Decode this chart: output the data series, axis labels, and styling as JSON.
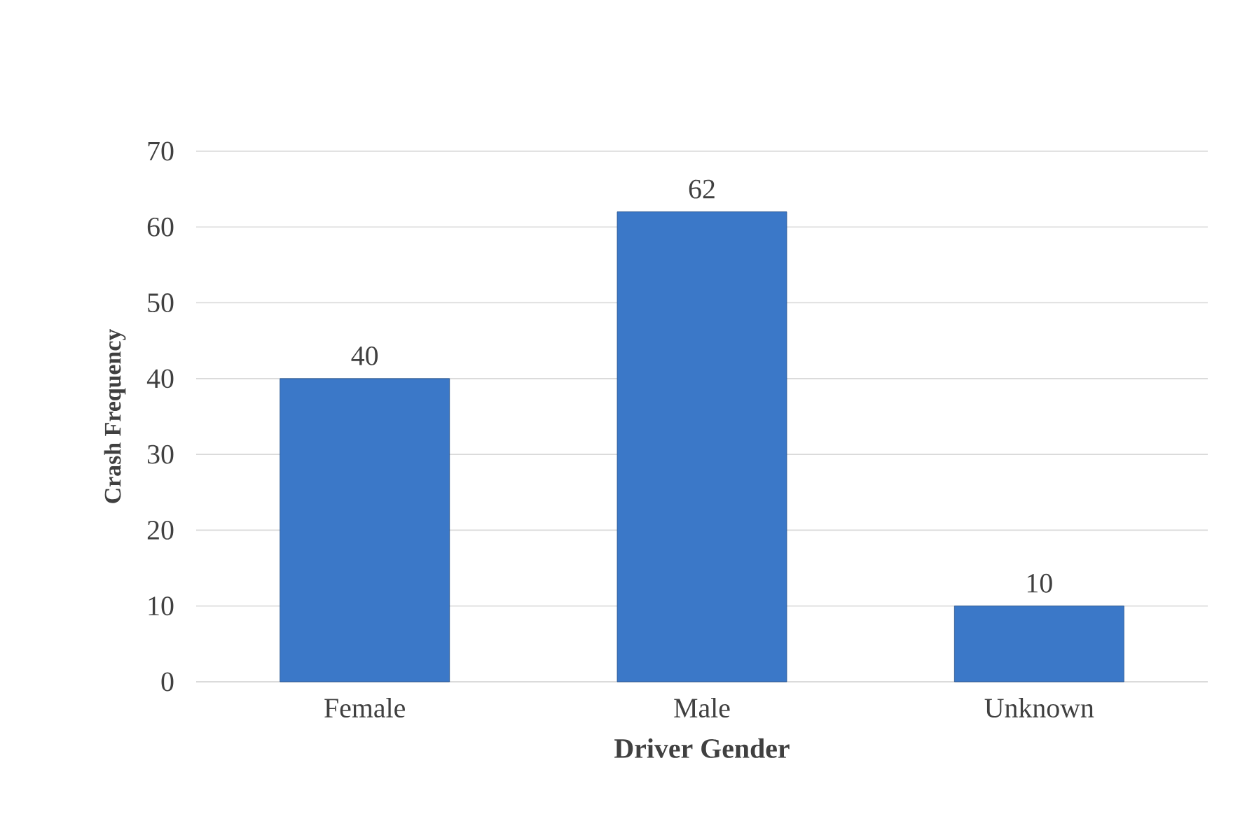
{
  "chart_data": {
    "type": "bar",
    "xlabel": "Driver Gender",
    "ylabel": "Crash Frequency",
    "categories": [
      "Female",
      "Male",
      "Unknown"
    ],
    "values": [
      40,
      62,
      10
    ],
    "color": "#3b78c8",
    "ylim": [
      0,
      70
    ],
    "yticks": [
      0,
      10,
      20,
      30,
      40,
      50,
      60,
      70
    ],
    "grid": "y",
    "data_labels": true
  }
}
